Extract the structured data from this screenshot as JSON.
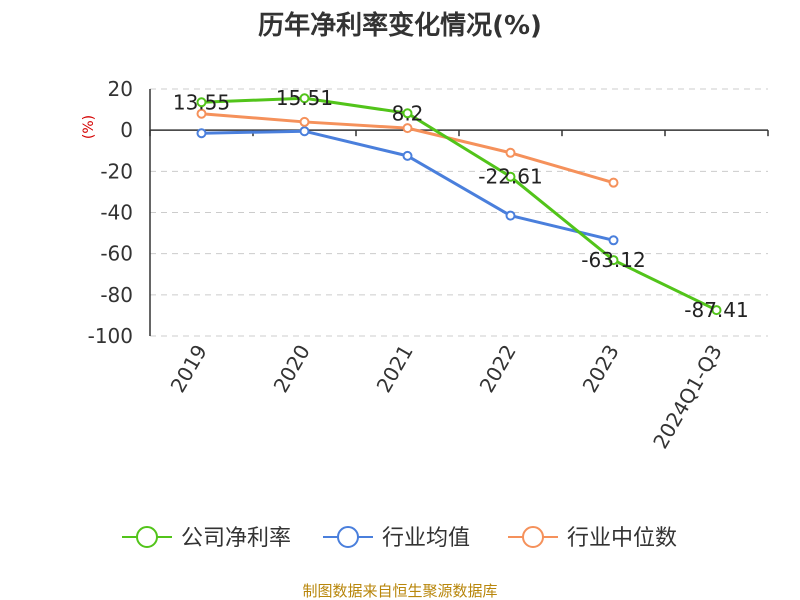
{
  "title": "历年净利率变化情况(%)",
  "source": "制图数据来自恒生聚源数据库",
  "chart_data": {
    "type": "line",
    "title": "历年净利率变化情况(%)",
    "ylabel": "(%)",
    "xlabel": "",
    "ylim": [
      -100,
      20
    ],
    "yticks": [
      20,
      0,
      -20,
      -40,
      -60,
      -80,
      -100
    ],
    "grid": true,
    "legend_position": "bottom",
    "categories": [
      "2019",
      "2020",
      "2021",
      "2022",
      "2023",
      "2024Q1-Q3"
    ],
    "series": [
      {
        "name": "公司净利率",
        "color": "#52c41a",
        "values": [
          13.55,
          15.51,
          8.2,
          -22.61,
          -63.12,
          -87.41
        ],
        "labels": [
          "13.55",
          "15.51",
          "8.2",
          "-22.61",
          "-63.12",
          "-87.41"
        ]
      },
      {
        "name": "行业均值",
        "color": "#4a7fdc",
        "values": [
          -1.5,
          -0.5,
          -12.5,
          -41.5,
          -53.5,
          null
        ]
      },
      {
        "name": "行业中位数",
        "color": "#f5915b",
        "values": [
          8,
          4,
          1,
          -11,
          -25.5,
          null
        ]
      }
    ]
  }
}
